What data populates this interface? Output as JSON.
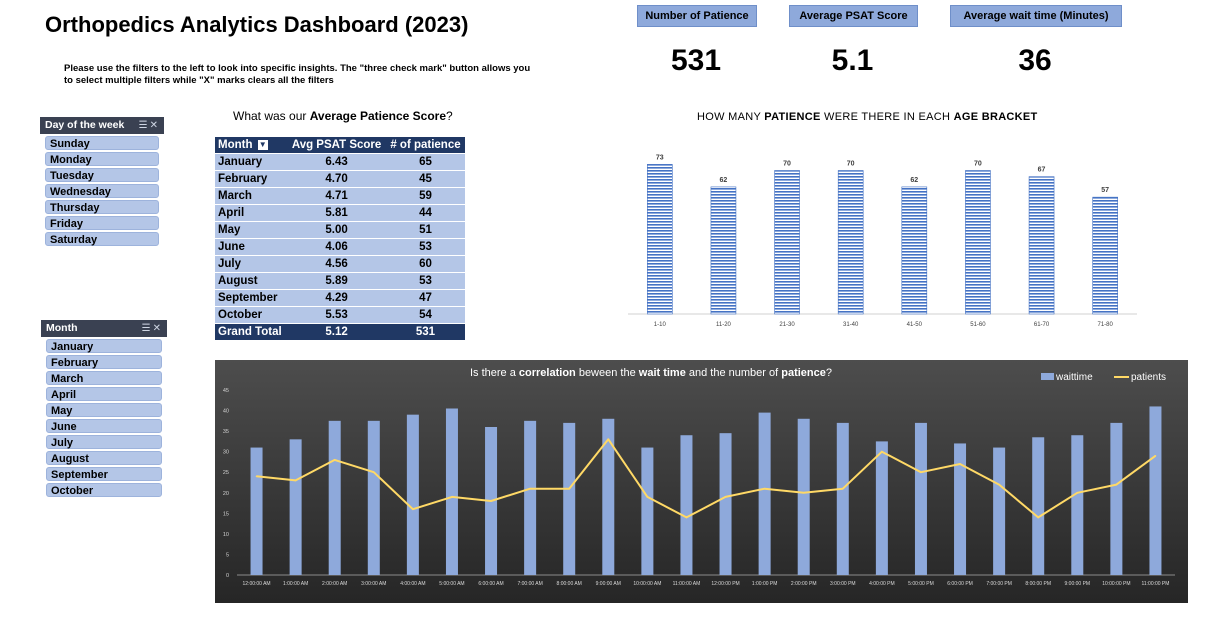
{
  "title": "Orthopedics Analytics Dashboard (2023)",
  "instructions": {
    "line1": "Please use the filters to the left to look into specific insights. The \"three check mark\" button allows you",
    "line2": "to select multiple filters while \"X\" marks clears all the filters"
  },
  "kpis": [
    {
      "label": "Number of Patience",
      "value": "531"
    },
    {
      "label": "Average PSAT Score",
      "value": "5.1"
    },
    {
      "label": "Average wait time (Minutes)",
      "value": "36"
    }
  ],
  "slicer_day": {
    "header": "Day of the week",
    "items": [
      "Sunday",
      "Monday",
      "Tuesday",
      "Wednesday",
      "Thursday",
      "Friday",
      "Saturday"
    ]
  },
  "slicer_month": {
    "header": "Month",
    "items": [
      "January",
      "February",
      "March",
      "April",
      "May",
      "June",
      "July",
      "August",
      "September",
      "October"
    ]
  },
  "pivot": {
    "title_pre": "What was our ",
    "title_bold": "Average Patience Score",
    "title_post": "?",
    "headers": [
      "Month",
      "Avg PSAT Score",
      "# of patience"
    ],
    "rows": [
      [
        "January",
        "6.43",
        "65"
      ],
      [
        "February",
        "4.70",
        "45"
      ],
      [
        "March",
        "4.71",
        "59"
      ],
      [
        "April",
        "5.81",
        "44"
      ],
      [
        "May",
        "5.00",
        "51"
      ],
      [
        "June",
        "4.06",
        "53"
      ],
      [
        "July",
        "4.56",
        "60"
      ],
      [
        "August",
        "5.89",
        "53"
      ],
      [
        "September",
        "4.29",
        "47"
      ],
      [
        "October",
        "5.53",
        "54"
      ]
    ],
    "total": [
      "Grand Total",
      "5.12",
      "531"
    ]
  },
  "chart_data": [
    {
      "type": "bar",
      "title": "HOW MANY PATIENCE WERE THERE IN EACH AGE BRACKET",
      "title_parts": {
        "p1": "HOW MANY ",
        "b1": "PATIENCE",
        "p2": " WERE THERE IN EACH ",
        "b2": "AGE BRACKET"
      },
      "categories": [
        "1-10",
        "11-20",
        "21-30",
        "31-40",
        "41-50",
        "51-60",
        "61-70",
        "71-80"
      ],
      "values": [
        73,
        62,
        70,
        70,
        62,
        70,
        67,
        57
      ],
      "ylim": [
        0,
        80
      ],
      "grid": false,
      "bar_color": "#4472c4"
    },
    {
      "type": "bar+line",
      "title": "Is there a correlation beween the wait time and the number of patience?",
      "title_parts": {
        "p1": "Is there a ",
        "b1": "correlation",
        "p2": " beween the ",
        "b2": "wait time",
        "p3": " and the number of ",
        "b3": "patience",
        "p4": "?"
      },
      "legend": "top-right",
      "categories": [
        "12:00:00 AM",
        "1:00:00 AM",
        "2:00:00 AM",
        "3:00:00 AM",
        "4:00:00 AM",
        "5:00:00 AM",
        "6:00:00 AM",
        "7:00:00 AM",
        "8:00:00 AM",
        "9:00:00 AM",
        "10:00:00 AM",
        "11:00:00 AM",
        "12:00:00 PM",
        "1:00:00 PM",
        "2:00:00 PM",
        "3:00:00 PM",
        "4:00:00 PM",
        "5:00:00 PM",
        "6:00:00 PM",
        "7:00:00 PM",
        "8:00:00 PM",
        "9:00:00 PM",
        "10:00:00 PM",
        "11:00:00 PM"
      ],
      "series": [
        {
          "name": "waittime",
          "type": "bar",
          "color": "#8ea9db",
          "values": [
            31,
            33,
            37.5,
            37.5,
            39,
            40.5,
            36,
            37.5,
            37,
            38,
            31,
            34,
            34.5,
            39.5,
            38,
            37,
            32.5,
            37,
            32,
            31,
            33.5,
            34,
            37,
            41
          ]
        },
        {
          "name": "patients",
          "type": "line",
          "color": "#ffd966",
          "values": [
            24,
            23,
            28,
            25,
            16,
            19,
            18,
            21,
            21,
            33,
            19,
            14,
            19,
            21,
            20,
            21,
            30,
            25,
            27,
            22,
            14,
            20,
            22,
            29
          ]
        }
      ],
      "yticks": [
        0,
        5,
        10,
        15,
        20,
        25,
        30,
        35,
        40,
        45
      ],
      "ylim": [
        0,
        45
      ],
      "grid": false
    }
  ]
}
